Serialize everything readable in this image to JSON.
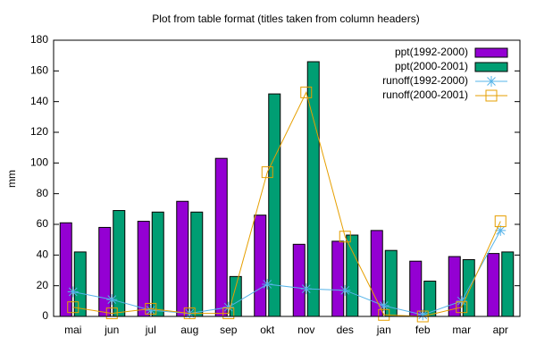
{
  "chart_data": {
    "type": "bar_line",
    "title": "Plot from table format (titles taken from column headers)",
    "y_label": "mm",
    "categories": [
      "mai",
      "jun",
      "jul",
      "aug",
      "sep",
      "okt",
      "nov",
      "des",
      "jan",
      "feb",
      "mar",
      "apr"
    ],
    "series": [
      {
        "name": "ppt(1992-2000)",
        "type": "bar",
        "color": "#9400d3",
        "values": [
          61,
          58,
          62,
          75,
          103,
          66,
          47,
          49,
          56,
          36,
          39,
          41
        ]
      },
      {
        "name": "ppt(2000-2001)",
        "type": "bar",
        "color": "#009e73",
        "values": [
          42,
          69,
          68,
          68,
          26,
          145,
          166,
          53,
          43,
          23,
          37,
          42
        ]
      },
      {
        "name": "runoff(1992-2000)",
        "type": "line",
        "marker": "asterisk",
        "color": "#56b4e9",
        "values": [
          16,
          11,
          4,
          2,
          6,
          21,
          18,
          17,
          7,
          1,
          10,
          56
        ]
      },
      {
        "name": "runoff(2000-2001)",
        "type": "line",
        "marker": "square",
        "color": "#e69f00",
        "values": [
          6,
          2,
          5,
          2,
          2,
          94,
          146,
          52,
          1,
          0,
          6,
          62
        ]
      }
    ],
    "ylim": [
      0,
      180
    ],
    "yticks": [
      0,
      20,
      40,
      60,
      80,
      100,
      120,
      140,
      160,
      180
    ],
    "legend": "top-right"
  }
}
